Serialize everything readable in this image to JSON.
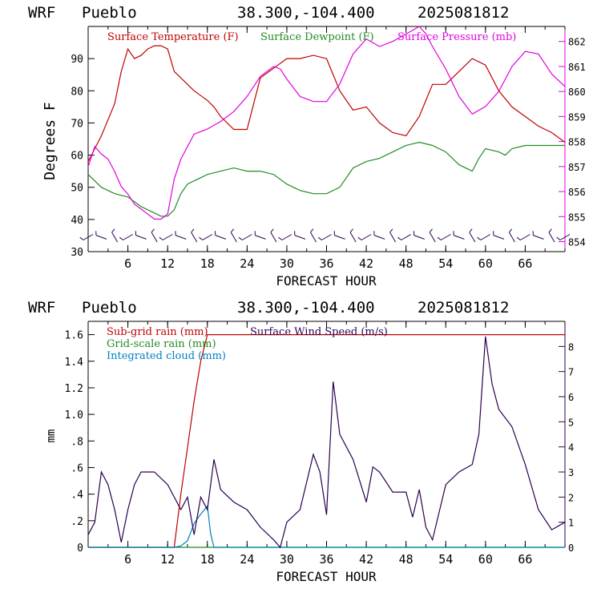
{
  "colors": {
    "temperature": "#c00000",
    "dewpoint": "#228b22",
    "pressure": "#e000e0",
    "subgrid_rain": "#c00000",
    "gridscale_rain": "#228b22",
    "cloud": "#0080c0",
    "wind": "#2a0050",
    "wind_barbs": "#2a0050",
    "axis": "#000000"
  },
  "chart_data": [
    {
      "type": "line",
      "header": {
        "model": "WRF",
        "station": "Pueblo",
        "coords": "38.300,-104.400",
        "init": "2025081812"
      },
      "title": "",
      "xlabel": "FORECAST HOUR",
      "ylabel": "Degrees F",
      "xlim": [
        0,
        72
      ],
      "ylim": [
        30,
        100
      ],
      "y2lim": [
        853.6,
        862.6
      ],
      "x_ticks": [
        "6",
        "12",
        "18",
        "24",
        "30",
        "36",
        "42",
        "48",
        "54",
        "60",
        "66"
      ],
      "y_ticks": [
        "30",
        "40",
        "50",
        "60",
        "70",
        "80",
        "90"
      ],
      "y2_ticks": [
        "854",
        "855",
        "856",
        "857",
        "858",
        "859",
        "860",
        "861",
        "862"
      ],
      "legend": [
        "Surface Temperature (F)",
        "Surface Dewpoint (F)",
        "Surface Pressure (mb)"
      ],
      "series": [
        {
          "name": "Surface Temperature (F)",
          "axis": "left",
          "x": [
            0,
            2,
            4,
            5,
            6,
            7,
            8,
            9,
            10,
            11,
            12,
            13,
            14,
            16,
            18,
            19,
            20,
            22,
            24,
            25,
            26,
            28,
            30,
            32,
            34,
            36,
            38,
            40,
            42,
            44,
            46,
            48,
            50,
            52,
            54,
            56,
            58,
            60,
            62,
            64,
            66,
            68,
            70,
            72
          ],
          "y": [
            58,
            66,
            76,
            86,
            93,
            90,
            91,
            93,
            94,
            94,
            93,
            86,
            84,
            80,
            77,
            75,
            72,
            68,
            68,
            76,
            84,
            87,
            90,
            90,
            91,
            90,
            80,
            74,
            75,
            70,
            67,
            66,
            72,
            82,
            82,
            86,
            90,
            88,
            80,
            75,
            72,
            69,
            67,
            64
          ]
        },
        {
          "name": "Surface Dewpoint (F)",
          "axis": "left",
          "x": [
            0,
            2,
            4,
            6,
            8,
            10,
            11,
            12,
            13,
            14,
            15,
            16,
            18,
            20,
            22,
            24,
            26,
            28,
            30,
            32,
            34,
            36,
            38,
            40,
            42,
            44,
            46,
            48,
            50,
            52,
            54,
            56,
            58,
            59,
            60,
            62,
            63,
            64,
            66,
            68,
            70,
            72
          ],
          "y": [
            54,
            50,
            48,
            47,
            44,
            42,
            41,
            41,
            43,
            48,
            51,
            52,
            54,
            55,
            56,
            55,
            55,
            54,
            51,
            49,
            48,
            48,
            50,
            56,
            58,
            59,
            61,
            63,
            64,
            63,
            61,
            57,
            55,
            59,
            62,
            61,
            60,
            62,
            63,
            63,
            63,
            63
          ]
        },
        {
          "name": "Surface Pressure (mb)",
          "axis": "right",
          "x": [
            0,
            1,
            2,
            3,
            4,
            5,
            6,
            7,
            8,
            9,
            10,
            11,
            12,
            13,
            14,
            15,
            16,
            18,
            20,
            22,
            24,
            26,
            28,
            29,
            30,
            32,
            34,
            36,
            38,
            40,
            42,
            44,
            46,
            48,
            50,
            51,
            52,
            54,
            56,
            58,
            60,
            62,
            64,
            66,
            68,
            70,
            72
          ],
          "y": [
            857,
            857.8,
            857.5,
            857.3,
            856.8,
            856.2,
            855.9,
            855.5,
            855.3,
            855.1,
            854.9,
            854.9,
            855.1,
            856.5,
            857.3,
            857.8,
            858.3,
            858.5,
            858.8,
            859.2,
            859.8,
            860.6,
            861,
            860.9,
            860.5,
            859.8,
            859.6,
            859.6,
            860.3,
            861.5,
            862.1,
            861.8,
            862,
            862.3,
            862.6,
            862.3,
            861.8,
            860.9,
            859.8,
            859.1,
            859.4,
            860,
            861,
            861.6,
            861.5,
            860.7,
            860.2
          ]
        }
      ],
      "wind_barb_hours": [
        0,
        2,
        4,
        6,
        8,
        10,
        12,
        14,
        16,
        18,
        20,
        22,
        24,
        26,
        28,
        30,
        32,
        34,
        36,
        38,
        40,
        42,
        44,
        46,
        48,
        50,
        52,
        54,
        56,
        58,
        60,
        62,
        64,
        66,
        68,
        70,
        72
      ]
    },
    {
      "type": "line",
      "header": {
        "model": "WRF",
        "station": "Pueblo",
        "coords": "38.300,-104.400",
        "init": "2025081812"
      },
      "title": "",
      "xlabel": "FORECAST HOUR",
      "ylabel": "mm",
      "xlim": [
        0,
        72
      ],
      "ylim": [
        0,
        1.7
      ],
      "y2lim": [
        0,
        9.0
      ],
      "x_ticks": [
        "6",
        "12",
        "18",
        "24",
        "30",
        "36",
        "42",
        "48",
        "54",
        "60",
        "66"
      ],
      "y_ticks": [
        "0",
        ".2",
        ".4",
        ".6",
        ".8",
        "1.0",
        "1.2",
        "1.4",
        "1.6"
      ],
      "y2_ticks": [
        "0",
        "1",
        "2",
        "3",
        "4",
        "5",
        "6",
        "7",
        "8"
      ],
      "legend": [
        "Sub-grid rain (mm)",
        "Grid-scale rain (mm)",
        "Integrated cloud (mm)",
        "Surface Wind Speed (m/s)"
      ],
      "series": [
        {
          "name": "Sub-grid rain (mm)",
          "axis": "left",
          "x": [
            0,
            13,
            14,
            15,
            16,
            17,
            18,
            19,
            72
          ],
          "y": [
            0,
            0,
            0.4,
            0.75,
            1.1,
            1.4,
            1.6,
            1.6,
            1.6
          ]
        },
        {
          "name": "Grid-scale rain (mm)",
          "axis": "left",
          "x": [
            0,
            72
          ],
          "y": [
            0,
            0
          ]
        },
        {
          "name": "Integrated cloud (mm)",
          "axis": "left",
          "x": [
            0,
            13,
            14,
            15,
            16,
            17,
            18,
            18.5,
            19,
            72
          ],
          "y": [
            0,
            0,
            0.01,
            0.05,
            0.18,
            0.25,
            0.31,
            0.1,
            0,
            0
          ]
        },
        {
          "name": "Surface Wind Speed (m/s)",
          "axis": "right",
          "x": [
            0,
            1,
            2,
            3,
            4,
            5,
            6,
            7,
            8,
            10,
            12,
            14,
            15,
            16,
            17,
            18,
            19,
            20,
            22,
            24,
            26,
            28,
            29,
            30,
            32,
            34,
            35,
            36,
            37,
            38,
            39,
            40,
            42,
            43,
            44,
            46,
            48,
            49,
            50,
            51,
            52,
            54,
            56,
            58,
            59,
            60,
            61,
            62,
            64,
            66,
            68,
            70,
            72
          ],
          "y": [
            0.5,
            1,
            3,
            2.5,
            1.5,
            0.2,
            1.5,
            2.5,
            3,
            3,
            2.5,
            1.5,
            2,
            0.5,
            2,
            1.5,
            3.5,
            2.3,
            1.8,
            1.5,
            0.8,
            0.3,
            0,
            1,
            1.5,
            3.7,
            3,
            1.3,
            6.6,
            4.5,
            4,
            3.5,
            1.8,
            3.2,
            3,
            2.2,
            2.2,
            1.2,
            2.3,
            0.8,
            0.3,
            2.5,
            3,
            3.3,
            4.5,
            8.4,
            6.5,
            5.5,
            4.8,
            3.3,
            1.5,
            0.7,
            1
          ]
        }
      ]
    }
  ]
}
